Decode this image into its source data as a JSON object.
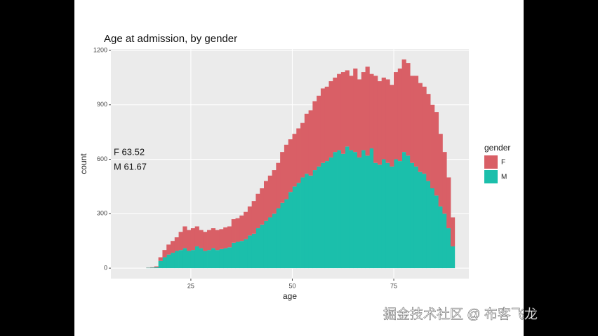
{
  "chart_data": {
    "type": "histogram",
    "title": "Age at admission, by gender",
    "xlabel": "age",
    "ylabel": "count",
    "bins": [
      14,
      15,
      16,
      17,
      18,
      19,
      20,
      21,
      22,
      23,
      24,
      25,
      26,
      27,
      28,
      29,
      30,
      31,
      32,
      33,
      34,
      35,
      36,
      37,
      38,
      39,
      40,
      41,
      42,
      43,
      44,
      45,
      46,
      47,
      48,
      49,
      50,
      51,
      52,
      53,
      54,
      55,
      56,
      57,
      58,
      59,
      60,
      61,
      62,
      63,
      64,
      65,
      66,
      67,
      68,
      69,
      70,
      71,
      72,
      73,
      74,
      75,
      76,
      77,
      78,
      79,
      80,
      81,
      82,
      83,
      84,
      85,
      86,
      87,
      88,
      89,
      90
    ],
    "series": [
      {
        "name": "F",
        "color": "#d95f66",
        "values": [
          1,
          2,
          5,
          20,
          40,
          55,
          65,
          75,
          100,
          120,
          115,
          120,
          110,
          100,
          105,
          110,
          110,
          110,
          110,
          115,
          115,
          130,
          130,
          140,
          150,
          160,
          180,
          190,
          200,
          220,
          230,
          240,
          250,
          280,
          300,
          290,
          290,
          300,
          300,
          330,
          360,
          380,
          390,
          410,
          410,
          420,
          410,
          420,
          450,
          420,
          410,
          460,
          430,
          430,
          490,
          410,
          480,
          460,
          450,
          460,
          450,
          480,
          510,
          510,
          510,
          480,
          500,
          490,
          480,
          480,
          460,
          460,
          400,
          340,
          280,
          160
        ]
      },
      {
        "name": "M",
        "color": "#1bbfab",
        "values": [
          2,
          3,
          5,
          40,
          60,
          75,
          85,
          95,
          100,
          110,
          95,
          100,
          120,
          110,
          95,
          100,
          110,
          100,
          105,
          110,
          115,
          140,
          145,
          150,
          160,
          180,
          190,
          220,
          240,
          260,
          280,
          300,
          330,
          360,
          380,
          420,
          450,
          470,
          500,
          520,
          510,
          540,
          560,
          580,
          590,
          610,
          640,
          650,
          630,
          670,
          650,
          640,
          610,
          650,
          620,
          660,
          580,
          570,
          600,
          580,
          560,
          600,
          590,
          640,
          620,
          580,
          560,
          530,
          520,
          480,
          440,
          400,
          340,
          300,
          220,
          120
        ]
      }
    ],
    "stacked": true,
    "xlim": [
      5.3,
      93.5
    ],
    "xticks": [
      25,
      50,
      75
    ],
    "ylim": [
      -57.5,
      1207.5
    ],
    "yticks": [
      0,
      300,
      600,
      900,
      1200
    ],
    "grid": true,
    "legend_title": "gender",
    "legend_position": "right",
    "annotations": [
      "F 63.52",
      "M 61.67"
    ]
  },
  "watermark": "掘金技术社区 @ 布客飞龙"
}
